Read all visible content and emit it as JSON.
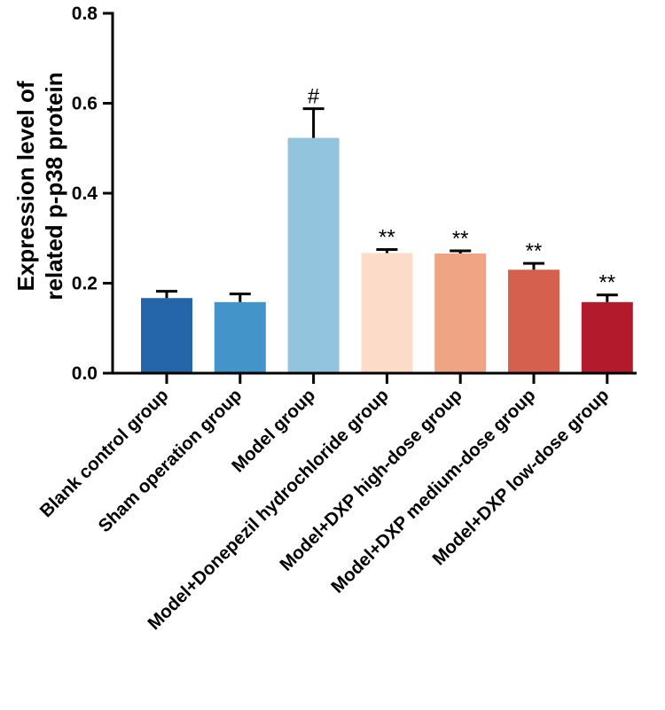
{
  "chart_data": {
    "type": "bar",
    "title": "",
    "xlabel": "",
    "ylabel_lines": [
      "Expression level of",
      "related p-p38 protein"
    ],
    "ylim": [
      0,
      0.8
    ],
    "yticks": [
      0.0,
      0.2,
      0.4,
      0.6,
      0.8
    ],
    "ytick_labels": [
      "0.0",
      "0.2",
      "0.4",
      "0.6",
      "0.8"
    ],
    "categories": [
      "Blank control group",
      "Sham operation group",
      "Model group",
      "Model+Donepezil hydrochloride group",
      "Model+DXP high-dose group",
      "Model+DXP medium-dose group",
      "Model+DXP low-dose group"
    ],
    "values": [
      0.167,
      0.158,
      0.523,
      0.267,
      0.266,
      0.23,
      0.158
    ],
    "errors": [
      0.015,
      0.018,
      0.065,
      0.008,
      0.006,
      0.014,
      0.016
    ],
    "annotations": [
      "",
      "",
      "#",
      "**",
      "**",
      "**",
      "**"
    ],
    "colors": [
      "#2565A9",
      "#4394C9",
      "#92C5DD",
      "#FCDCC9",
      "#EFA584",
      "#D6604E",
      "#B31B2D"
    ]
  }
}
